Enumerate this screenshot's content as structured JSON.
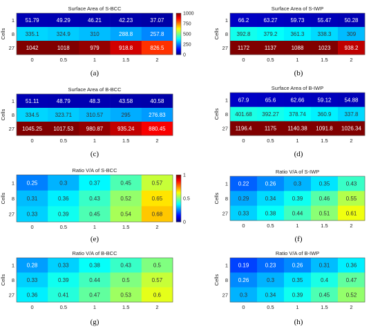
{
  "chart_data": [
    {
      "type": "heatmap",
      "panel_label": "(a)",
      "title": "Surface Area of S-BCC",
      "ylabel": "Cells",
      "x": [
        "0",
        "0.5",
        "1",
        "1.5",
        "2"
      ],
      "y": [
        "1",
        "8",
        "27"
      ],
      "values": [
        [
          51.79,
          49.29,
          46.21,
          42.23,
          37.07
        ],
        [
          335.1,
          324.9,
          310,
          288.8,
          257.8
        ],
        [
          1042,
          1018,
          979,
          918.8,
          826.5
        ]
      ],
      "cell_labels": [
        [
          "51.79",
          "49.29",
          "46.21",
          "42.23",
          "37.07"
        ],
        [
          "335.1",
          "324.9",
          "310",
          "288.8",
          "257.8"
        ],
        [
          "1042",
          "1018",
          "979",
          "918.8",
          "826.5"
        ]
      ],
      "colormap": "jet",
      "clim": [
        0,
        1000
      ],
      "colorbar": true,
      "colorbar_ticks": [
        "0",
        "250",
        "500",
        "750",
        "1000"
      ]
    },
    {
      "type": "heatmap",
      "panel_label": "(b)",
      "title": "Surface Area of S-IWP",
      "ylabel": "Cells",
      "x": [
        "0",
        "0.5",
        "1",
        "1.5",
        "2"
      ],
      "y": [
        "1",
        "8",
        "27"
      ],
      "values": [
        [
          66.2,
          63.27,
          59.73,
          55.47,
          50.28
        ],
        [
          392.8,
          379.2,
          361.3,
          338.3,
          309
        ],
        [
          1172,
          1137,
          1088,
          1023,
          938.2
        ]
      ],
      "cell_labels": [
        [
          "66.2",
          "63.27",
          "59.73",
          "55.47",
          "50.28"
        ],
        [
          "392.8",
          "379.2",
          "361.3",
          "338.3",
          "309"
        ],
        [
          "1172",
          "1137",
          "1088",
          "1023",
          "938.2"
        ]
      ],
      "colormap": "jet",
      "clim": [
        0,
        1000
      ],
      "colorbar": false
    },
    {
      "type": "heatmap",
      "panel_label": "(c)",
      "title": "Surface Area of B-BCC",
      "ylabel": "Cells",
      "x": [
        "0",
        "0.5",
        "1",
        "1.5",
        "2"
      ],
      "y": [
        "1",
        "8",
        "27"
      ],
      "values": [
        [
          51.11,
          48.79,
          48.3,
          43.58,
          40.58
        ],
        [
          334.5,
          323.71,
          310.57,
          295,
          276.83
        ],
        [
          1045.25,
          1017.53,
          980.87,
          935.24,
          880.45
        ]
      ],
      "cell_labels": [
        [
          "51.11",
          "48.79",
          "48.3",
          "43.58",
          "40.58"
        ],
        [
          "334.5",
          "323.71",
          "310.57",
          "295",
          "276.83"
        ],
        [
          "1045.25",
          "1017.53",
          "980.87",
          "935.24",
          "880.45"
        ]
      ],
      "colormap": "jet",
      "clim": [
        0,
        1000
      ],
      "colorbar": false
    },
    {
      "type": "heatmap",
      "panel_label": "(d)",
      "title": "Surface Area of B-IWP",
      "ylabel": "Cells",
      "x": [
        "0",
        "0.5",
        "1",
        "1.5",
        "2"
      ],
      "y": [
        "1",
        "8",
        "27"
      ],
      "values": [
        [
          67.9,
          65.6,
          62.66,
          59.12,
          54.88
        ],
        [
          401.68,
          392.27,
          378.74,
          360.9,
          337.8
        ],
        [
          1196.4,
          1175,
          1140.38,
          1091.8,
          1026.34
        ]
      ],
      "cell_labels": [
        [
          "67.9",
          "65.6",
          "62.66",
          "59.12",
          "54.88"
        ],
        [
          "401.68",
          "392.27",
          "378.74",
          "360.9",
          "337.8"
        ],
        [
          "1196.4",
          "1175",
          "1140.38",
          "1091.8",
          "1026.34"
        ]
      ],
      "colormap": "jet",
      "clim": [
        0,
        1000
      ],
      "colorbar": false
    },
    {
      "type": "heatmap",
      "panel_label": "(e)",
      "title": "Ratio V/A of S-BCC",
      "ylabel": "Cells",
      "x": [
        "0",
        "0.5",
        "1",
        "1.5",
        "2"
      ],
      "y": [
        "1",
        "8",
        "27"
      ],
      "values": [
        [
          0.25,
          0.3,
          0.37,
          0.45,
          0.57
        ],
        [
          0.31,
          0.36,
          0.43,
          0.52,
          0.65
        ],
        [
          0.33,
          0.39,
          0.45,
          0.54,
          0.68
        ]
      ],
      "cell_labels": [
        [
          "0.25",
          "0.3",
          "0.37",
          "0.45",
          "0.57"
        ],
        [
          "0.31",
          "0.36",
          "0.43",
          "0.52",
          "0.65"
        ],
        [
          "0.33",
          "0.39",
          "0.45",
          "0.54",
          "0.68"
        ]
      ],
      "colormap": "jet",
      "clim": [
        0,
        1
      ],
      "colorbar": true,
      "colorbar_ticks": [
        "0",
        "0.5",
        "1"
      ]
    },
    {
      "type": "heatmap",
      "panel_label": "(f)",
      "title": "Ratio V/A of S-IWP",
      "ylabel": "Cells",
      "x": [
        "0",
        "0.5",
        "1",
        "1.5",
        "2"
      ],
      "y": [
        "1",
        "8",
        "27"
      ],
      "values": [
        [
          0.22,
          0.26,
          0.3,
          0.35,
          0.43
        ],
        [
          0.29,
          0.34,
          0.39,
          0.46,
          0.55
        ],
        [
          0.33,
          0.38,
          0.44,
          0.51,
          0.61
        ]
      ],
      "cell_labels": [
        [
          "0.22",
          "0.26",
          "0.3",
          "0.35",
          "0.43"
        ],
        [
          "0.29",
          "0.34",
          "0.39",
          "0.46",
          "0.55"
        ],
        [
          "0.33",
          "0.38",
          "0.44",
          "0.51",
          "0.61"
        ]
      ],
      "colormap": "jet",
      "clim": [
        0,
        1
      ],
      "colorbar": false
    },
    {
      "type": "heatmap",
      "panel_label": "(g)",
      "title": "Ratio V/A of B-BCC",
      "ylabel": "Cells",
      "x": [
        "0",
        "0.5",
        "1",
        "1.5",
        "2"
      ],
      "y": [
        "1",
        "8",
        "27"
      ],
      "values": [
        [
          0.28,
          0.33,
          0.38,
          0.43,
          0.5
        ],
        [
          0.33,
          0.39,
          0.44,
          0.5,
          0.57
        ],
        [
          0.36,
          0.41,
          0.47,
          0.53,
          0.6
        ]
      ],
      "cell_labels": [
        [
          "0.28",
          "0.33",
          "0.38",
          "0.43",
          "0.5"
        ],
        [
          "0.33",
          "0.39",
          "0.44",
          "0.5",
          "0.57"
        ],
        [
          "0.36",
          "0.41",
          "0.47",
          "0.53",
          "0.6"
        ]
      ],
      "colormap": "jet",
      "clim": [
        0,
        1
      ],
      "colorbar": false
    },
    {
      "type": "heatmap",
      "panel_label": "(h)",
      "title": "Ratio V/A of B-IWP",
      "ylabel": "Cells",
      "x": [
        "0",
        "0.5",
        "1",
        "1.5",
        "2"
      ],
      "y": [
        "1",
        "8",
        "27"
      ],
      "values": [
        [
          0.19,
          0.23,
          0.26,
          0.31,
          0.36
        ],
        [
          0.26,
          0.3,
          0.35,
          0.4,
          0.47
        ],
        [
          0.3,
          0.34,
          0.39,
          0.45,
          0.52
        ]
      ],
      "cell_labels": [
        [
          "0.19",
          "0.23",
          "0.26",
          "0.31",
          "0.36"
        ],
        [
          "0.26",
          "0.3",
          "0.35",
          "0.4",
          "0.47"
        ],
        [
          "0.3",
          "0.34",
          "0.39",
          "0.45",
          "0.52"
        ]
      ],
      "colormap": "jet",
      "clim": [
        0,
        1
      ],
      "colorbar": false
    }
  ]
}
